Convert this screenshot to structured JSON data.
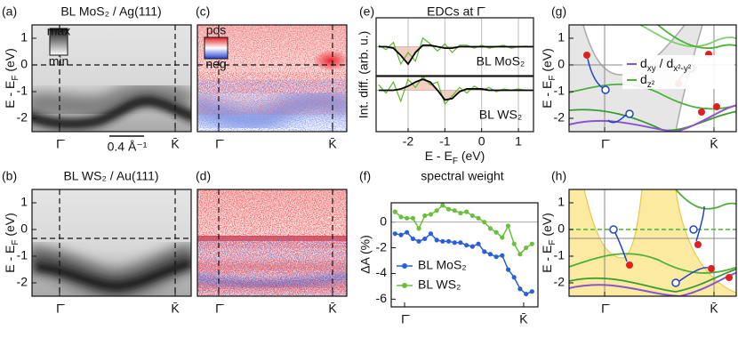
{
  "panels": {
    "a": {
      "label": "(a)",
      "title": "BL MoS₂ / Ag(111)",
      "ylabel": [
        "E - E",
        "F",
        " (eV)"
      ],
      "ylim": [
        -2.5,
        1.5
      ],
      "yticks": [
        1,
        0,
        -1,
        -2
      ],
      "xticks": [
        "Γ̄",
        "K̄"
      ],
      "colorbar": [
        "max",
        "min"
      ],
      "scalebar": "0.4 Å⁻¹"
    },
    "b": {
      "label": "(b)",
      "title": "BL WS₂ / Au(111)",
      "ylabel": [
        "E - E",
        "F",
        " (eV)"
      ],
      "ylim": [
        -2.5,
        1.5
      ],
      "yticks": [
        1,
        0,
        -1,
        -2
      ],
      "xticks": [
        "Γ̄",
        "K̄"
      ]
    },
    "c": {
      "label": "(c)",
      "xticks": [
        "Γ̄",
        "K̄"
      ],
      "colorbar": [
        "pos",
        "neg"
      ]
    },
    "d": {
      "label": "(d)",
      "xticks": [
        "Γ̄",
        "K̄"
      ]
    },
    "g": {
      "label": "(g)",
      "ylabel": [
        "E - E",
        "F",
        " (eV)"
      ],
      "ylim": [
        -2.5,
        1.5
      ],
      "yticks": [
        1,
        0,
        -1,
        -2
      ],
      "xticks": [
        "Γ̄",
        "K̄"
      ],
      "legend": [
        [
          "d",
          "xy",
          " / d",
          "x²-y²"
        ],
        [
          "d",
          "z²"
        ]
      ]
    },
    "h": {
      "label": "(h)",
      "ylabel": [
        "E - E",
        "F",
        " (eV)"
      ],
      "ylim": [
        -2.5,
        1.5
      ],
      "yticks": [
        1,
        0,
        -1,
        -2
      ],
      "xticks": [
        "Γ̄",
        "K̄"
      ]
    }
  },
  "chart_data": [
    {
      "type": "line",
      "label": "(e)",
      "title": "EDCs at Γ̄",
      "annotation": "BL MoS₂",
      "x": [
        -2.8,
        -2.6,
        -2.4,
        -2.2,
        -2.0,
        -1.8,
        -1.6,
        -1.4,
        -1.2,
        -1.0,
        -0.8,
        -0.6,
        -0.4,
        -0.2,
        0,
        0.2,
        0.4,
        0.6,
        0.8,
        1.0,
        1.2,
        1.4
      ],
      "xlim": [
        -2.87,
        1.41
      ],
      "ylim": [
        -1,
        1
      ],
      "fill_color": "#f3c2b4",
      "series": [
        {
          "color": "#5cb82e",
          "values": [
            0.05,
            -0.1,
            0.15,
            -0.6,
            -0.2,
            -0.5,
            0.3,
            0.1,
            -0.15,
            0.1,
            -0.2,
            0.05,
            0.05,
            -0.05,
            0.05,
            -0.05,
            0,
            0.05,
            -0.05,
            0,
            0.02,
            0
          ]
        },
        {
          "color": "#000000",
          "fill": true,
          "values": [
            0,
            0,
            -0.05,
            -0.3,
            -0.6,
            -0.2,
            0.05,
            0.05,
            0,
            -0.05,
            -0.05,
            0,
            0,
            0,
            0,
            0,
            0,
            0,
            0,
            0,
            0,
            0
          ]
        }
      ]
    },
    {
      "type": "line",
      "annotation": "BL WS₂",
      "ylabel": "Int. diff. (arb. u.)",
      "xlabel": [
        "E - E",
        "F",
        " (eV)"
      ],
      "x": [
        -2.8,
        -2.6,
        -2.4,
        -2.2,
        -2.0,
        -1.8,
        -1.6,
        -1.4,
        -1.2,
        -1.0,
        -0.8,
        -0.6,
        -0.4,
        -0.2,
        0,
        0.2,
        0.4,
        0.6,
        0.8,
        1.0,
        1.2,
        1.4
      ],
      "xlim": [
        -2.87,
        1.41
      ],
      "ylim": [
        -1.5,
        0.5
      ],
      "xticks": [
        -2,
        -1,
        0,
        1
      ],
      "fill_color": "#f3c2b4",
      "series": [
        {
          "color": "#5cb82e",
          "values": [
            0.2,
            -0.1,
            0.3,
            -0.4,
            0.4,
            0.1,
            0.5,
            0.2,
            0.3,
            -0.5,
            -0.2,
            0.1,
            -0.1,
            0.15,
            0,
            0.1,
            -0.05,
            0.05,
            0,
            0.05,
            0,
            0
          ]
        },
        {
          "color": "#000000",
          "fill": true,
          "values": [
            0,
            0,
            0,
            0.05,
            0.15,
            0.3,
            0.4,
            0.3,
            0,
            -0.35,
            -0.3,
            -0.05,
            0.05,
            0.05,
            0.05,
            0,
            0,
            0,
            0,
            0,
            0,
            0
          ]
        }
      ]
    },
    {
      "type": "line",
      "label": "(f)",
      "title": "spectral weight",
      "ylabel": "ΔA (%)",
      "x": [
        -0.08,
        -0.03,
        0.02,
        0.07,
        0.12,
        0.17,
        0.22,
        0.27,
        0.32,
        0.37,
        0.42,
        0.47,
        0.52,
        0.57,
        0.62,
        0.67,
        0.72,
        0.77,
        0.82,
        0.87,
        0.92,
        0.97,
        1.02,
        1.07
      ],
      "xlim": [
        -0.112,
        1.12
      ],
      "ylim": [
        -6.6,
        1.5
      ],
      "yticks": [
        0,
        -2,
        -4,
        -6
      ],
      "xticks": [
        {
          "value": 0,
          "label": "Γ̄"
        },
        {
          "value": 1,
          "label": "K̄"
        }
      ],
      "legend": "lower left",
      "series": [
        {
          "name": "BL MoS₂",
          "color": "#2b5fd9",
          "values": [
            -0.9,
            -1.0,
            -0.8,
            -1.3,
            -1.5,
            -1.3,
            -0.9,
            -1.4,
            -1.5,
            -1.5,
            -1.6,
            -1.6,
            -1.8,
            -1.9,
            -1.7,
            -2.3,
            -2.5,
            -2.7,
            -2.6,
            -3.7,
            -4.3,
            -5.2,
            -5.6,
            -5.4
          ]
        },
        {
          "name": "BL WS₂",
          "color": "#6cbf3a",
          "values": [
            0.8,
            0.4,
            0.3,
            0.3,
            -0.5,
            0.5,
            0.6,
            0.9,
            1.3,
            1.0,
            0.9,
            0.7,
            0.8,
            0.5,
            0.3,
            0.0,
            -0.5,
            -0.8,
            -1.2,
            -0.3,
            -1.7,
            -2.5,
            -2.0,
            -1.7
          ]
        }
      ]
    }
  ]
}
